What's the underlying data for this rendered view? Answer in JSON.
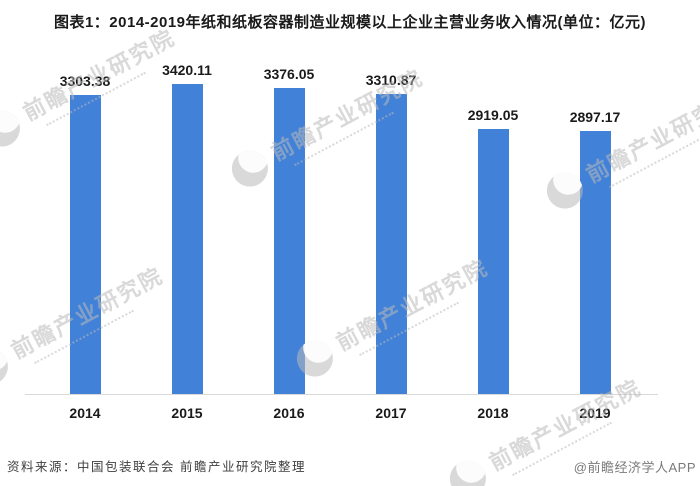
{
  "page": {
    "title": "图表1：2014-2019年纸和纸板容器制造业规模以上企业主营业务收入情况(单位：亿元)",
    "source_note": "资料来源：中国包装联合会 前瞻产业研究院整理",
    "credit": "@前瞻经济学人APP",
    "watermark_text": "前瞻产业研究院"
  },
  "colors": {
    "bar": "#4281d8",
    "axis": "#d9d9d9",
    "title": "#1a1a1a",
    "label": "#1a1a1a",
    "source": "#3f3f3f",
    "credit": "#7a7a7a",
    "watermark": "rgba(185,185,185,0.55)"
  },
  "chart_data": {
    "type": "bar",
    "title": "图表1：2014-2019年纸和纸板容器制造业规模以上企业主营业务收入情况(单位：亿元)",
    "unit": "亿元",
    "categories": [
      "2014",
      "2015",
      "2016",
      "2017",
      "2018",
      "2019"
    ],
    "values": [
      3303.38,
      3420.11,
      3376.05,
      3310.87,
      2919.05,
      2897.17
    ],
    "value_labels_shown": true,
    "xlabel": "",
    "ylabel": "",
    "ylim": [
      0,
      3600
    ],
    "grid": false,
    "legend": "none",
    "y_axis_shown": false
  }
}
